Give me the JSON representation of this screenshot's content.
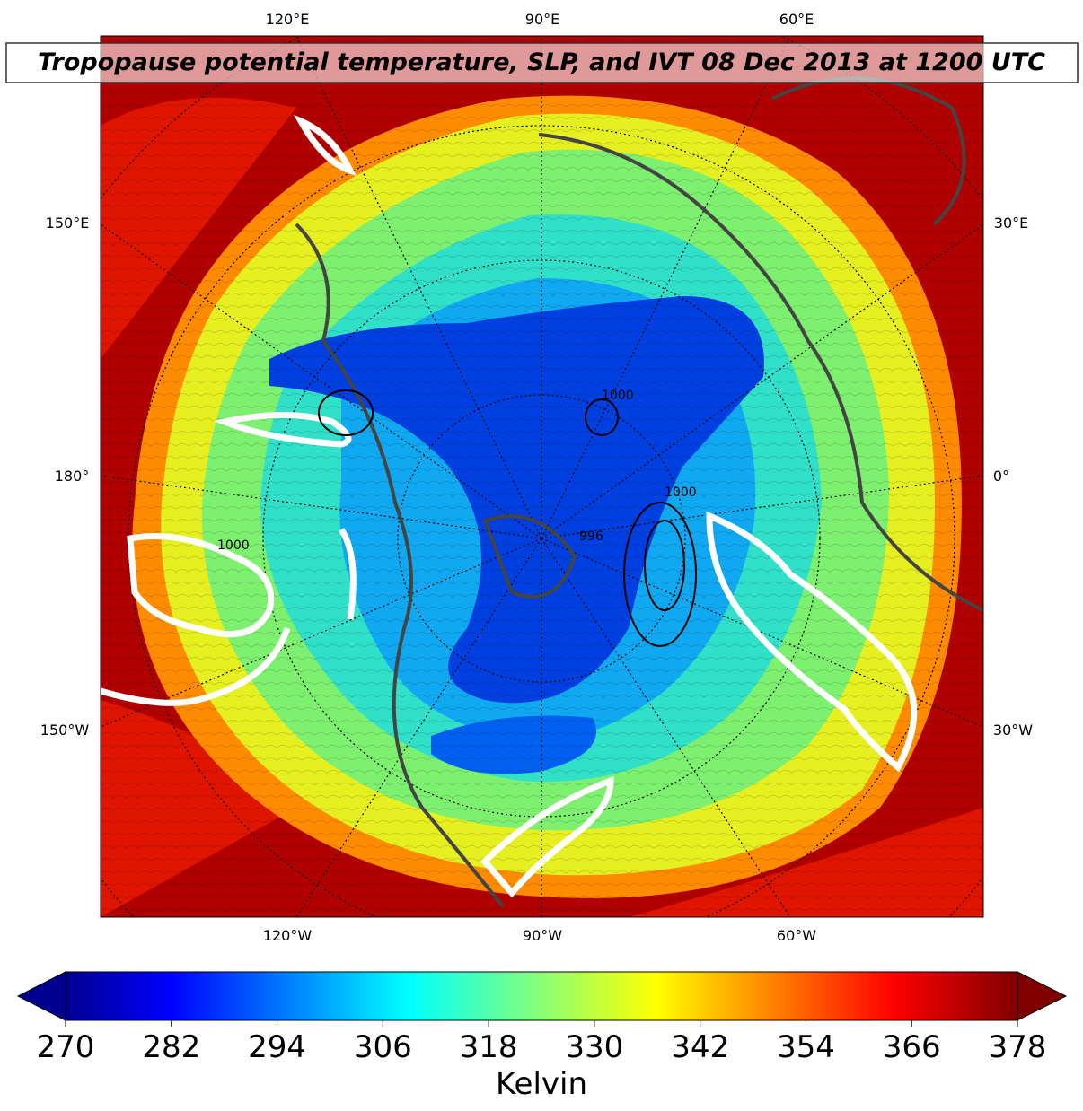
{
  "title": "Tropopause potential temperature, SLP, and IVT 08 Dec 2013 at 1200 UTC",
  "map": {
    "top_labels": [
      "120°E",
      "90°E",
      "60°E"
    ],
    "left_labels": [
      "150°E",
      "180°",
      "150°W"
    ],
    "right_labels": [
      "30°E",
      "0°",
      "30°W"
    ],
    "bottom_labels": [
      "120°W",
      "90°W",
      "60°W"
    ],
    "contour_labels": [
      "1000",
      "1000",
      "996",
      "1000"
    ]
  },
  "colorbar": {
    "label": "Kelvin",
    "lim": [
      270,
      378
    ],
    "ticks": [
      270,
      282,
      294,
      306,
      318,
      330,
      342,
      354,
      366,
      378
    ]
  }
}
